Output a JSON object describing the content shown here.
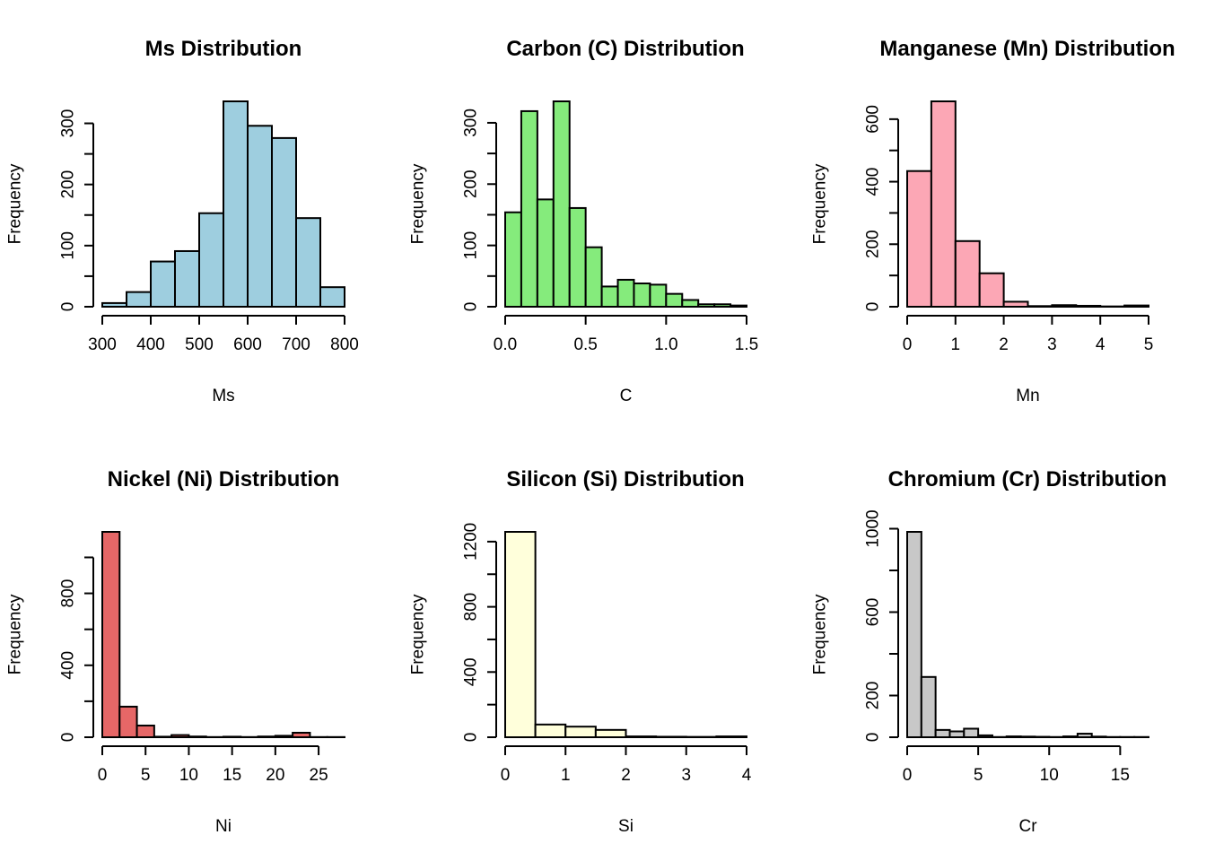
{
  "chart_data": [
    {
      "type": "bar",
      "title": "Ms Distribution",
      "xlabel": "Ms",
      "ylabel": "Frequency",
      "color": "#9ECEDF",
      "bin_edges": [
        300,
        350,
        400,
        450,
        500,
        550,
        600,
        650,
        700,
        750,
        800
      ],
      "values": [
        6,
        24,
        74,
        91,
        153,
        336,
        296,
        276,
        145,
        32
      ],
      "xlim": [
        300,
        800
      ],
      "ylim": [
        0,
        336
      ],
      "xticks": [
        300,
        400,
        500,
        600,
        700,
        800
      ],
      "xtick_labels": [
        "300",
        "400",
        "500",
        "600",
        "700",
        "800"
      ],
      "yticks": [
        0,
        50,
        100,
        150,
        200,
        250,
        300
      ],
      "ytick_labels": {
        "0": "0",
        "100": "100",
        "200": "200",
        "300": "300"
      }
    },
    {
      "type": "bar",
      "title": "Carbon (C) Distribution",
      "xlabel": "C",
      "ylabel": "Frequency",
      "color": "#85EB7C",
      "bin_edges": [
        0.0,
        0.1,
        0.2,
        0.3,
        0.4,
        0.5,
        0.6,
        0.7,
        0.8,
        0.9,
        1.0,
        1.1,
        1.2,
        1.3,
        1.4,
        1.5
      ],
      "values": [
        154,
        319,
        175,
        335,
        161,
        97,
        33,
        44,
        38,
        36,
        21,
        11,
        4,
        4,
        2
      ],
      "xlim": [
        0.0,
        1.5
      ],
      "ylim": [
        0,
        335
      ],
      "xticks": [
        0.0,
        0.5,
        1.0,
        1.5
      ],
      "xtick_labels": [
        "0.0",
        "0.5",
        "1.0",
        "1.5"
      ],
      "yticks": [
        0,
        50,
        100,
        150,
        200,
        250,
        300
      ],
      "ytick_labels": {
        "0": "0",
        "100": "100",
        "200": "200",
        "300": "300"
      }
    },
    {
      "type": "bar",
      "title": "Manganese (Mn) Distribution",
      "xlabel": "Mn",
      "ylabel": "Frequency",
      "color": "#FCA7B5",
      "bin_edges": [
        0,
        0.5,
        1,
        1.5,
        2,
        2.5,
        3,
        3.5,
        4,
        4.5,
        5
      ],
      "values": [
        434,
        657,
        210,
        107,
        16,
        2,
        5,
        3,
        1,
        4
      ],
      "xlim": [
        0,
        5
      ],
      "ylim": [
        0,
        657
      ],
      "xticks": [
        0,
        1,
        2,
        3,
        4,
        5
      ],
      "xtick_labels": [
        "0",
        "1",
        "2",
        "3",
        "4",
        "5"
      ],
      "yticks": [
        0,
        100,
        200,
        300,
        400,
        500,
        600
      ],
      "ytick_labels": {
        "0": "0",
        "200": "200",
        "400": "400",
        "600": "600"
      }
    },
    {
      "type": "bar",
      "title": "Nickel (Ni) Distribution",
      "xlabel": "Ni",
      "ylabel": "Frequency",
      "color": "#E66767",
      "bin_edges": [
        0,
        2,
        4,
        6,
        8,
        10,
        12,
        14,
        16,
        18,
        20,
        22,
        24,
        26,
        28
      ],
      "values": [
        1142,
        170,
        65,
        3,
        12,
        4,
        1,
        3,
        1,
        4,
        8,
        25,
        1,
        1
      ],
      "xlim": [
        0,
        28
      ],
      "ylim": [
        0,
        1142
      ],
      "xticks": [
        0,
        5,
        10,
        15,
        20,
        25
      ],
      "xtick_labels": [
        "0",
        "5",
        "10",
        "15",
        "20",
        "25"
      ],
      "yticks": [
        0,
        200,
        400,
        600,
        800,
        1000
      ],
      "ytick_labels": {
        "0": "0",
        "400": "400",
        "800": "800"
      }
    },
    {
      "type": "bar",
      "title": "Silicon (Si) Distribution",
      "xlabel": "Si",
      "ylabel": "Frequency",
      "color": "#FFFFDB",
      "bin_edges": [
        0,
        0.5,
        1,
        1.5,
        2,
        2.5,
        3,
        3.5,
        4
      ],
      "values": [
        1260,
        78,
        65,
        45,
        5,
        3,
        2,
        5
      ],
      "xlim": [
        0,
        4
      ],
      "ylim": [
        0,
        1260
      ],
      "xticks": [
        0,
        1,
        2,
        3,
        4
      ],
      "xtick_labels": [
        "0",
        "1",
        "2",
        "3",
        "4"
      ],
      "yticks": [
        0,
        200,
        400,
        600,
        800,
        1000,
        1200
      ],
      "ytick_labels": {
        "0": "0",
        "400": "400",
        "800": "800",
        "1200": "1200"
      }
    },
    {
      "type": "bar",
      "title": "Chromium (Cr) Distribution",
      "xlabel": "Cr",
      "ylabel": "Frequency",
      "color": "#C8C8C8",
      "bin_edges": [
        0,
        1,
        2,
        3,
        4,
        5,
        6,
        7,
        8,
        9,
        10,
        11,
        12,
        13,
        14,
        15,
        16,
        17
      ],
      "values": [
        985,
        289,
        35,
        28,
        41,
        9,
        1,
        4,
        3,
        2,
        1,
        4,
        17,
        3,
        1,
        1,
        1
      ],
      "xlim": [
        0,
        17
      ],
      "ylim": [
        0,
        985
      ],
      "xticks": [
        0,
        5,
        10,
        15
      ],
      "xtick_labels": [
        "0",
        "5",
        "10",
        "15"
      ],
      "yticks": [
        0,
        200,
        400,
        600,
        800,
        1000
      ],
      "ytick_labels": {
        "0": "0",
        "200": "200",
        "600": "600",
        "1000": "1000"
      }
    }
  ]
}
